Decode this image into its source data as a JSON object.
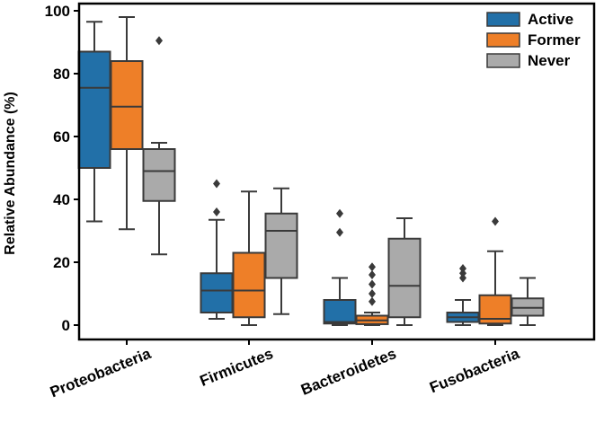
{
  "chart_data": {
    "type": "box",
    "title": "",
    "xlabel": "",
    "ylabel": "Relative Abundance (%)",
    "ylim": [
      0,
      100
    ],
    "yticks": [
      0,
      20,
      40,
      60,
      80,
      100
    ],
    "categories": [
      "Proteobacteria",
      "Firmicutes",
      "Bacteroidetes",
      "Fusobacteria"
    ],
    "legend_position": "top-right",
    "series": [
      {
        "name": "Active",
        "color": "#2270a8",
        "boxes": [
          {
            "whisker_low": 33,
            "q1": 50,
            "median": 75.5,
            "q3": 87,
            "whisker_high": 96.5,
            "outliers": []
          },
          {
            "whisker_low": 2,
            "q1": 4,
            "median": 11,
            "q3": 16.5,
            "whisker_high": 33.5,
            "outliers": [
              36,
              45
            ]
          },
          {
            "whisker_low": 0,
            "q1": 0.5,
            "median": 1,
            "q3": 8,
            "whisker_high": 15,
            "outliers": [
              29.5,
              35.5
            ]
          },
          {
            "whisker_low": 0,
            "q1": 1,
            "median": 2.5,
            "q3": 4,
            "whisker_high": 8,
            "outliers": [
              15,
              16.5,
              18
            ]
          }
        ]
      },
      {
        "name": "Former",
        "color": "#ee7f28",
        "boxes": [
          {
            "whisker_low": 30.5,
            "q1": 56,
            "median": 69.5,
            "q3": 84,
            "whisker_high": 98,
            "outliers": []
          },
          {
            "whisker_low": 0,
            "q1": 2.5,
            "median": 11,
            "q3": 23,
            "whisker_high": 42.5,
            "outliers": []
          },
          {
            "whisker_low": 0,
            "q1": 0.3,
            "median": 1.5,
            "q3": 3,
            "whisker_high": 4,
            "outliers": [
              7.5,
              10,
              13,
              16,
              18.5
            ]
          },
          {
            "whisker_low": 0,
            "q1": 0.5,
            "median": 2,
            "q3": 9.5,
            "whisker_high": 23.5,
            "outliers": [
              33
            ]
          }
        ]
      },
      {
        "name": "Never",
        "color": "#aaaaaa",
        "boxes": [
          {
            "whisker_low": 22.5,
            "q1": 39.5,
            "median": 49,
            "q3": 56,
            "whisker_high": 58,
            "outliers": [
              90.5
            ]
          },
          {
            "whisker_low": 3.5,
            "q1": 15,
            "median": 30,
            "q3": 35.5,
            "whisker_high": 43.5,
            "outliers": []
          },
          {
            "whisker_low": 0,
            "q1": 2.5,
            "median": 12.5,
            "q3": 27.5,
            "whisker_high": 34,
            "outliers": []
          },
          {
            "whisker_low": 0,
            "q1": 3,
            "median": 5.5,
            "q3": 8.5,
            "whisker_high": 15,
            "outliers": []
          }
        ]
      }
    ]
  }
}
